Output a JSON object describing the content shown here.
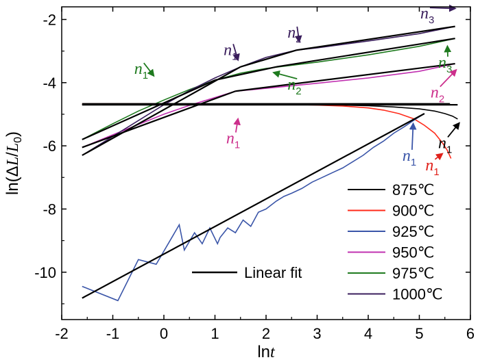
{
  "chart_data": {
    "type": "line",
    "xlabel": "lnt",
    "ylabel": "ln(ΔL/L0)",
    "xlim": [
      -2,
      6
    ],
    "ylim": [
      -11.5,
      -1.6
    ],
    "x_ticks": [
      "-2",
      "-1",
      "0",
      "1",
      "2",
      "3",
      "4",
      "5",
      "6"
    ],
    "y_ticks": [
      "-2",
      "-4",
      "-6",
      "-8",
      "-10"
    ],
    "grid": false,
    "legend_position": "bottom-right",
    "series": [
      {
        "name": "875℃",
        "color": "#000000",
        "x": [
          -1.6,
          0,
          1,
          2,
          2.5,
          3,
          3.5,
          4,
          4.5,
          5,
          5.3,
          5.5,
          5.65,
          5.75
        ],
        "y": [
          -4.7,
          -4.7,
          -4.7,
          -4.7,
          -4.7,
          -4.7,
          -4.71,
          -4.73,
          -4.77,
          -4.83,
          -4.9,
          -4.98,
          -5.06,
          -5.15
        ]
      },
      {
        "name": "900℃",
        "color": "#ff2a1a",
        "x": [
          -1.6,
          0,
          1,
          2,
          2.5,
          3,
          3.5,
          4,
          4.3,
          4.6,
          4.9,
          5.1,
          5.3,
          5.45,
          5.55,
          5.62
        ],
        "y": [
          -4.67,
          -4.67,
          -4.68,
          -4.68,
          -4.69,
          -4.71,
          -4.74,
          -4.8,
          -4.87,
          -4.98,
          -5.15,
          -5.35,
          -5.6,
          -5.9,
          -6.15,
          -6.4
        ]
      },
      {
        "name": "925℃",
        "color": "#3a55a8",
        "x": [
          -1.6,
          -0.9,
          -0.5,
          -0.15,
          0.3,
          0.4,
          0.6,
          0.75,
          0.9,
          1.05,
          1.1,
          1.25,
          1.4,
          1.55,
          1.7,
          1.85,
          2.0,
          2.2,
          2.35,
          2.5,
          2.7,
          2.9,
          3.1,
          3.3,
          3.5,
          3.7,
          3.9,
          4.1,
          4.3,
          4.5,
          4.7,
          4.9,
          5.1
        ],
        "y": [
          -10.45,
          -10.9,
          -9.6,
          -9.75,
          -8.5,
          -9.3,
          -8.75,
          -9.1,
          -8.6,
          -9.1,
          -8.9,
          -8.6,
          -8.75,
          -8.35,
          -8.55,
          -8.1,
          -8.0,
          -7.75,
          -7.6,
          -7.5,
          -7.35,
          -7.15,
          -7.0,
          -6.85,
          -6.7,
          -6.5,
          -6.3,
          -6.05,
          -5.85,
          -5.6,
          -5.4,
          -5.18,
          -4.98
        ]
      },
      {
        "name": "950℃",
        "color": "#c030b0",
        "x": [
          -1.6,
          -1,
          0,
          0.5,
          1,
          1.4,
          2,
          3,
          4,
          5,
          5.7
        ],
        "y": [
          -6.05,
          -5.65,
          -5.0,
          -4.72,
          -4.47,
          -4.27,
          -4.18,
          -4.02,
          -3.85,
          -3.64,
          -3.4
        ]
      },
      {
        "name": "975℃",
        "color": "#1e7a1e",
        "x": [
          -1.6,
          -1,
          -0.5,
          0,
          0.5,
          1,
          1.5,
          2,
          2.5,
          3,
          4,
          5,
          5.7
        ],
        "y": [
          -5.8,
          -5.3,
          -4.9,
          -4.55,
          -4.22,
          -3.92,
          -3.7,
          -3.55,
          -3.45,
          -3.35,
          -3.12,
          -2.85,
          -2.6
        ]
      },
      {
        "name": "1000℃",
        "color": "#3a1e5c",
        "x": [
          -1.6,
          -1,
          -0.5,
          0,
          0.5,
          1,
          1.5,
          2,
          2.6,
          3,
          4,
          5,
          5.7
        ],
        "y": [
          -6.3,
          -5.7,
          -5.2,
          -4.7,
          -4.25,
          -3.85,
          -3.5,
          -3.2,
          -2.97,
          -2.9,
          -2.68,
          -2.45,
          -2.22
        ]
      }
    ],
    "linear_fits_label": "Linear fit",
    "linear_fits": [
      {
        "x": [
          -1.6,
          5.1
        ],
        "y": [
          -10.82,
          -4.98
        ]
      },
      {
        "x": [
          -1.6,
          5.75
        ],
        "y": [
          -4.7,
          -4.7
        ]
      },
      {
        "x": [
          -1.6,
          5.6
        ],
        "y": [
          -4.67,
          -4.67
        ]
      },
      {
        "x": [
          -1.6,
          1.4
        ],
        "y": [
          -6.05,
          -4.27
        ]
      },
      {
        "x": [
          1.4,
          5.7
        ],
        "y": [
          -4.27,
          -3.4
        ]
      },
      {
        "x": [
          -1.6,
          1.0
        ],
        "y": [
          -5.8,
          -3.92
        ]
      },
      {
        "x": [
          1.0,
          2.2
        ],
        "y": [
          -3.92,
          -3.5
        ]
      },
      {
        "x": [
          2.2,
          5.7
        ],
        "y": [
          -3.5,
          -2.6
        ]
      },
      {
        "x": [
          -1.6,
          1.5
        ],
        "y": [
          -6.3,
          -3.5
        ]
      },
      {
        "x": [
          1.5,
          2.6
        ],
        "y": [
          -3.5,
          -2.97
        ]
      },
      {
        "x": [
          2.6,
          5.7
        ],
        "y": [
          -2.97,
          -2.22
        ]
      }
    ],
    "annotations": [
      {
        "text": "n",
        "sub": "1",
        "color": "#1e7a1e",
        "x": -0.5,
        "y": -3.55,
        "arrow_to": [
          -0.2,
          -3.78
        ]
      },
      {
        "text": "n",
        "sub": "1",
        "color": "#3a1e5c",
        "x": 1.25,
        "y": -2.95,
        "arrow_to": [
          1.45,
          -3.28
        ]
      },
      {
        "text": "n",
        "sub": "2",
        "color": "#3a1e5c",
        "x": 2.5,
        "y": -2.4,
        "arrow_to": [
          2.65,
          -2.7
        ]
      },
      {
        "text": "n",
        "sub": "3",
        "color": "#3a1e5c",
        "x": 5.1,
        "y": -1.8,
        "arrow_to": [
          5.7,
          -1.65
        ]
      },
      {
        "text": "n",
        "sub": "2",
        "color": "#1e7a1e",
        "x": 2.5,
        "y": -4.05,
        "arrow_to": [
          2.15,
          -3.68
        ]
      },
      {
        "text": "n",
        "sub": "3",
        "color": "#1e7a1e",
        "x": 5.45,
        "y": -3.35,
        "arrow_to": [
          5.55,
          -2.85
        ]
      },
      {
        "text": "n",
        "sub": "2",
        "color": "#cc2f8c",
        "x": 5.3,
        "y": -4.3,
        "arrow_to": [
          5.72,
          -3.6
        ]
      },
      {
        "text": "n",
        "sub": "1",
        "color": "#cc2f8c",
        "x": 1.3,
        "y": -5.75,
        "arrow_to": [
          1.45,
          -5.15
        ]
      },
      {
        "text": "n",
        "sub": "1",
        "color": "#000000",
        "x": 5.45,
        "y": -5.9,
        "arrow_to": [
          5.78,
          -5.28
        ]
      },
      {
        "text": "n",
        "sub": "1",
        "color": "#e0201a",
        "x": 5.2,
        "y": -6.6,
        "arrow_to": [
          5.45,
          -6.25
        ]
      },
      {
        "text": "n",
        "sub": "1",
        "color": "#3a55a8",
        "x": 4.75,
        "y": -6.3,
        "arrow_to": [
          4.88,
          -5.3
        ]
      }
    ]
  }
}
